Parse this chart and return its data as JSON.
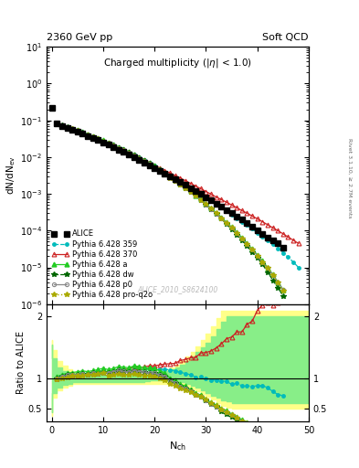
{
  "title_left": "2360 GeV pp",
  "title_right": "Soft QCD",
  "main_title": "Charged multiplicity (|η| < 1.0)",
  "ylabel_main": "dN/dN_ev",
  "ylabel_ratio": "Ratio to ALICE",
  "xlabel": "N_{ch}",
  "right_label": "Rivet 3.1.10, ≥ 2.7M events",
  "watermark": "ALICE_2010_S8624100",
  "alice_x": [
    0,
    1,
    2,
    3,
    4,
    5,
    6,
    7,
    8,
    9,
    10,
    11,
    12,
    13,
    14,
    15,
    16,
    17,
    18,
    19,
    20,
    21,
    22,
    23,
    24,
    25,
    26,
    27,
    28,
    29,
    30,
    31,
    32,
    33,
    34,
    35,
    36,
    37,
    38,
    39,
    40,
    41,
    42,
    43,
    44,
    45
  ],
  "alice_y": [
    0.22,
    0.082,
    0.071,
    0.062,
    0.055,
    0.049,
    0.043,
    0.038,
    0.033,
    0.029,
    0.025,
    0.022,
    0.019,
    0.016,
    0.014,
    0.012,
    0.01,
    0.0085,
    0.0072,
    0.006,
    0.005,
    0.0042,
    0.0035,
    0.003,
    0.0025,
    0.0021,
    0.00175,
    0.00145,
    0.00122,
    0.00098,
    0.00082,
    0.00068,
    0.00055,
    0.00045,
    0.00036,
    0.0003,
    0.00024,
    0.0002,
    0.00016,
    0.00013,
    0.0001,
    8e-05,
    6.5e-05,
    5.5e-05,
    4.5e-05,
    3.5e-05
  ],
  "p359_x": [
    1,
    2,
    3,
    4,
    5,
    6,
    7,
    8,
    9,
    10,
    11,
    12,
    13,
    14,
    15,
    16,
    17,
    18,
    19,
    20,
    21,
    22,
    23,
    24,
    25,
    26,
    27,
    28,
    29,
    30,
    31,
    32,
    33,
    34,
    35,
    36,
    37,
    38,
    39,
    40,
    41,
    42,
    43,
    44,
    45,
    46,
    47,
    48
  ],
  "p359_y": [
    0.082,
    0.073,
    0.065,
    0.058,
    0.052,
    0.046,
    0.041,
    0.036,
    0.032,
    0.028,
    0.024,
    0.021,
    0.018,
    0.016,
    0.0135,
    0.0115,
    0.0097,
    0.0082,
    0.0069,
    0.0058,
    0.0048,
    0.004,
    0.0034,
    0.0028,
    0.0023,
    0.00188,
    0.00153,
    0.00124,
    0.001,
    0.00082,
    0.00066,
    0.00053,
    0.00043,
    0.00034,
    0.00027,
    0.00022,
    0.000175,
    0.00014,
    0.000112,
    8.8e-05,
    7e-05,
    5.5e-05,
    4.3e-05,
    3.3e-05,
    2.5e-05,
    1.9e-05,
    1.4e-05,
    1e-05
  ],
  "p370_x": [
    1,
    2,
    3,
    4,
    5,
    6,
    7,
    8,
    9,
    10,
    11,
    12,
    13,
    14,
    15,
    16,
    17,
    18,
    19,
    20,
    21,
    22,
    23,
    24,
    25,
    26,
    27,
    28,
    29,
    30,
    31,
    32,
    33,
    34,
    35,
    36,
    37,
    38,
    39,
    40,
    41,
    42,
    43,
    44,
    45,
    46,
    47,
    48
  ],
  "p370_y": [
    0.082,
    0.073,
    0.065,
    0.058,
    0.052,
    0.046,
    0.041,
    0.036,
    0.032,
    0.028,
    0.024,
    0.021,
    0.018,
    0.016,
    0.0138,
    0.0118,
    0.01,
    0.0085,
    0.0072,
    0.006,
    0.0051,
    0.0043,
    0.0037,
    0.0031,
    0.0027,
    0.00228,
    0.00193,
    0.00163,
    0.00138,
    0.00116,
    0.00098,
    0.00082,
    0.0007,
    0.00059,
    0.0005,
    0.00042,
    0.00035,
    0.0003,
    0.00025,
    0.00021,
    0.000175,
    0.000145,
    0.00012,
    0.0001,
    8.2e-05,
    6.7e-05,
    5.5e-05,
    4.5e-05
  ],
  "pa_x": [
    1,
    2,
    3,
    4,
    5,
    6,
    7,
    8,
    9,
    10,
    11,
    12,
    13,
    14,
    15,
    16,
    17,
    18,
    19,
    20,
    21,
    22,
    23,
    24,
    25,
    26,
    27,
    28,
    29,
    30,
    31,
    32,
    33,
    34,
    35,
    36,
    37,
    38,
    39,
    40,
    41,
    42,
    43,
    44,
    45
  ],
  "pa_y": [
    0.084,
    0.075,
    0.067,
    0.06,
    0.054,
    0.048,
    0.042,
    0.037,
    0.033,
    0.029,
    0.025,
    0.022,
    0.019,
    0.0165,
    0.014,
    0.012,
    0.0101,
    0.0084,
    0.007,
    0.0058,
    0.0047,
    0.0038,
    0.003,
    0.0024,
    0.0019,
    0.00152,
    0.00118,
    0.00092,
    0.00071,
    0.00054,
    0.00041,
    0.00031,
    0.00023,
    0.00017,
    0.000125,
    9e-05,
    6.5e-05,
    4.5e-05,
    3.2e-05,
    2.2e-05,
    1.5e-05,
    1e-05,
    6.5e-06,
    4e-06,
    2.5e-06
  ],
  "pdw_x": [
    1,
    2,
    3,
    4,
    5,
    6,
    7,
    8,
    9,
    10,
    11,
    12,
    13,
    14,
    15,
    16,
    17,
    18,
    19,
    20,
    21,
    22,
    23,
    24,
    25,
    26,
    27,
    28,
    29,
    30,
    31,
    32,
    33,
    34,
    35,
    36,
    37,
    38,
    39,
    40,
    41,
    42,
    43,
    44,
    45
  ],
  "pdw_y": [
    0.082,
    0.073,
    0.065,
    0.058,
    0.052,
    0.046,
    0.04,
    0.036,
    0.031,
    0.027,
    0.024,
    0.021,
    0.018,
    0.0155,
    0.0132,
    0.0112,
    0.0094,
    0.0079,
    0.0065,
    0.0054,
    0.0044,
    0.0036,
    0.0029,
    0.0023,
    0.0018,
    0.00145,
    0.00115,
    0.00088,
    0.00068,
    0.00052,
    0.00039,
    0.00029,
    0.00021,
    0.00015,
    0.00011,
    7.8e-05,
    5.5e-05,
    3.8e-05,
    2.6e-05,
    1.8e-05,
    1.2e-05,
    7.5e-06,
    4.5e-06,
    2.8e-06,
    1.7e-06
  ],
  "pp0_x": [
    1,
    2,
    3,
    4,
    5,
    6,
    7,
    8,
    9,
    10,
    11,
    12,
    13,
    14,
    15,
    16,
    17,
    18,
    19,
    20,
    21,
    22,
    23,
    24,
    25,
    26,
    27,
    28,
    29,
    30,
    31,
    32,
    33,
    34,
    35,
    36,
    37,
    38,
    39,
    40,
    41,
    42,
    43,
    44,
    45
  ],
  "pp0_y": [
    0.082,
    0.073,
    0.065,
    0.058,
    0.052,
    0.046,
    0.04,
    0.036,
    0.031,
    0.027,
    0.024,
    0.021,
    0.018,
    0.0155,
    0.0132,
    0.0112,
    0.0094,
    0.0079,
    0.0065,
    0.0054,
    0.0044,
    0.0036,
    0.0029,
    0.0023,
    0.0018,
    0.00145,
    0.00115,
    0.00088,
    0.00068,
    0.00052,
    0.00039,
    0.00029,
    0.00022,
    0.00016,
    0.00012,
    8.5e-05,
    6e-05,
    4.3e-05,
    3e-05,
    2.1e-05,
    1.4e-05,
    9.5e-06,
    6.3e-06,
    4e-06,
    2.5e-06
  ],
  "pq2o_x": [
    1,
    2,
    3,
    4,
    5,
    6,
    7,
    8,
    9,
    10,
    11,
    12,
    13,
    14,
    15,
    16,
    17,
    18,
    19,
    20,
    21,
    22,
    23,
    24,
    25,
    26,
    27,
    28,
    29,
    30,
    31,
    32,
    33,
    34,
    35,
    36,
    37,
    38,
    39,
    40,
    41,
    42,
    43,
    44,
    45
  ],
  "pq2o_y": [
    0.08,
    0.071,
    0.063,
    0.057,
    0.051,
    0.045,
    0.04,
    0.035,
    0.031,
    0.027,
    0.023,
    0.02,
    0.017,
    0.0148,
    0.0126,
    0.0107,
    0.009,
    0.0075,
    0.0062,
    0.0051,
    0.0042,
    0.0034,
    0.0027,
    0.0022,
    0.00175,
    0.0014,
    0.00112,
    0.00088,
    0.00069,
    0.00053,
    0.0004,
    0.0003,
    0.00022,
    0.00016,
    0.00012,
    8.5e-05,
    6e-05,
    4.3e-05,
    3e-05,
    2.1e-05,
    1.4e-05,
    9.5e-06,
    6e-06,
    3.8e-06,
    2.3e-06
  ],
  "col_alice": "#000000",
  "col_p359": "#00bbbb",
  "col_p370": "#cc2222",
  "col_pa": "#22cc22",
  "col_pdw": "#006600",
  "col_pp0": "#888888",
  "col_pq2o": "#aaaa00",
  "ratio_ylim": [
    0.3,
    2.2
  ],
  "ratio_yticks": [
    0.5,
    1.0,
    2.0
  ],
  "main_ylim_lo": 1e-06,
  "main_ylim_hi": 10,
  "xlim_lo": -1,
  "xlim_hi": 50
}
